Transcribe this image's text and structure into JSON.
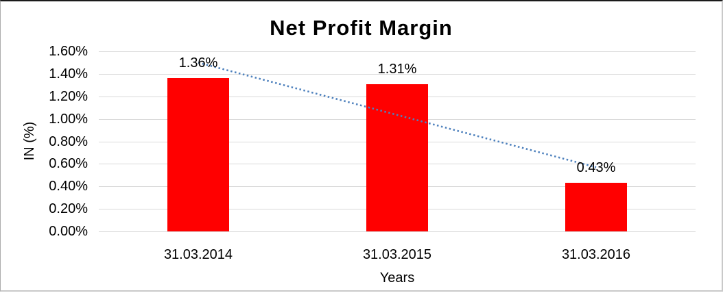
{
  "chart_data": {
    "type": "bar",
    "title": "Net Profit Margin",
    "xlabel": "Years",
    "ylabel": "IN (%)",
    "categories": [
      "31.03.2014",
      "31.03.2015",
      "31.03.2016"
    ],
    "values": [
      1.36,
      1.31,
      0.43
    ],
    "data_labels": [
      "1.36%",
      "1.31%",
      "0.43%"
    ],
    "ylim": [
      0,
      1.6
    ],
    "ytick_step": 0.2,
    "ytick_labels": [
      "0.00%",
      "0.20%",
      "0.40%",
      "0.60%",
      "0.80%",
      "1.00%",
      "1.20%",
      "1.40%",
      "1.60%"
    ],
    "grid": true,
    "legend": "none",
    "bar_color": "#ff0000",
    "gridline_color": "#d9d9d9",
    "trendline": {
      "type": "linear",
      "style": "dotted",
      "color": "#4e81bd",
      "start_value": 1.5,
      "end_value": 0.57
    }
  }
}
